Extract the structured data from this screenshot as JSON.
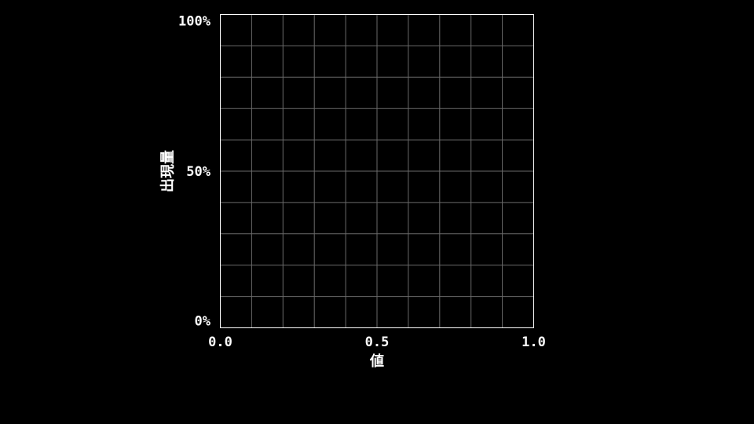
{
  "chart_data": {
    "type": "line",
    "title": "",
    "xlabel": "値",
    "ylabel": "出現量",
    "xlim": [
      0.0,
      1.0
    ],
    "ylim": [
      0,
      100
    ],
    "x_tick_labels": [
      "0.0",
      "0.5",
      "1.0"
    ],
    "x_tick_values": [
      0.0,
      0.5,
      1.0
    ],
    "y_tick_labels": [
      "0%",
      "50%",
      "100%"
    ],
    "y_tick_values": [
      0,
      50,
      100
    ],
    "grid": true,
    "grid_divisions": 10,
    "series": []
  },
  "colors": {
    "background": "#000000",
    "axis": "#ffffff",
    "grid": "#6a6a6a",
    "text": "#ffffff"
  }
}
